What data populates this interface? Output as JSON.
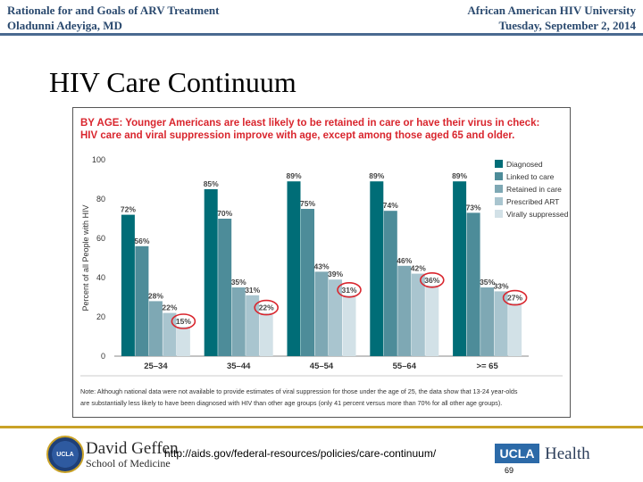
{
  "header": {
    "left_line1": "Rationale for and Goals of ARV Treatment",
    "left_line2": "Oladunni Adeyiga, MD",
    "right_line1": "African American HIV University",
    "right_line2": "Tuesday, September 2, 2014"
  },
  "slide_title": "HIV Care Continuum",
  "chart_data": {
    "type": "bar",
    "title_line1": "BY AGE: Younger Americans are least likely to be retained in care or have their virus in check:",
    "title_line2": "HIV care and viral suppression improve with age, except among those aged 65 and older.",
    "ylabel": "Percent of all People with HIV",
    "xlabel": "",
    "ylim": [
      0,
      100
    ],
    "yticks": [
      0,
      20,
      40,
      60,
      80,
      100
    ],
    "categories": [
      "25–34",
      "35–44",
      "45–54",
      "55–64",
      ">= 65"
    ],
    "series": [
      {
        "name": "Diagnosed",
        "color": "#006d77",
        "values": [
          72,
          85,
          89,
          89,
          89
        ]
      },
      {
        "name": "Linked to care",
        "color": "#4d8c99",
        "values": [
          56,
          70,
          75,
          74,
          73
        ]
      },
      {
        "name": "Retained in care",
        "color": "#7ea8b4",
        "values": [
          28,
          35,
          43,
          46,
          35
        ]
      },
      {
        "name": "Prescribed ART",
        "color": "#a9c5cf",
        "values": [
          22,
          31,
          39,
          42,
          33
        ]
      },
      {
        "name": "Virally suppressed",
        "color": "#d2e1e7",
        "values": [
          15,
          22,
          31,
          36,
          27
        ]
      }
    ],
    "highlight_color": "#d9262e",
    "legend_position": "right",
    "grid": false,
    "note_line1": "Note: Although national data were not available to provide estimates of viral suppression for those under the age of 25, the data show that 13-24 year-olds",
    "note_line2": "are substantially less likely to have been diagnosed with HIV than other age groups (only 41 percent versus more than 70% for all other age groups)."
  },
  "footer": {
    "school_name": "David Geffen",
    "school_sub": "School of Medicine",
    "seal_text": "UCLA",
    "url": "http://aids.gov/federal-resources/policies/care-continuum/",
    "ucla_label": "UCLA",
    "health_label": "Health",
    "page_number": "69"
  }
}
